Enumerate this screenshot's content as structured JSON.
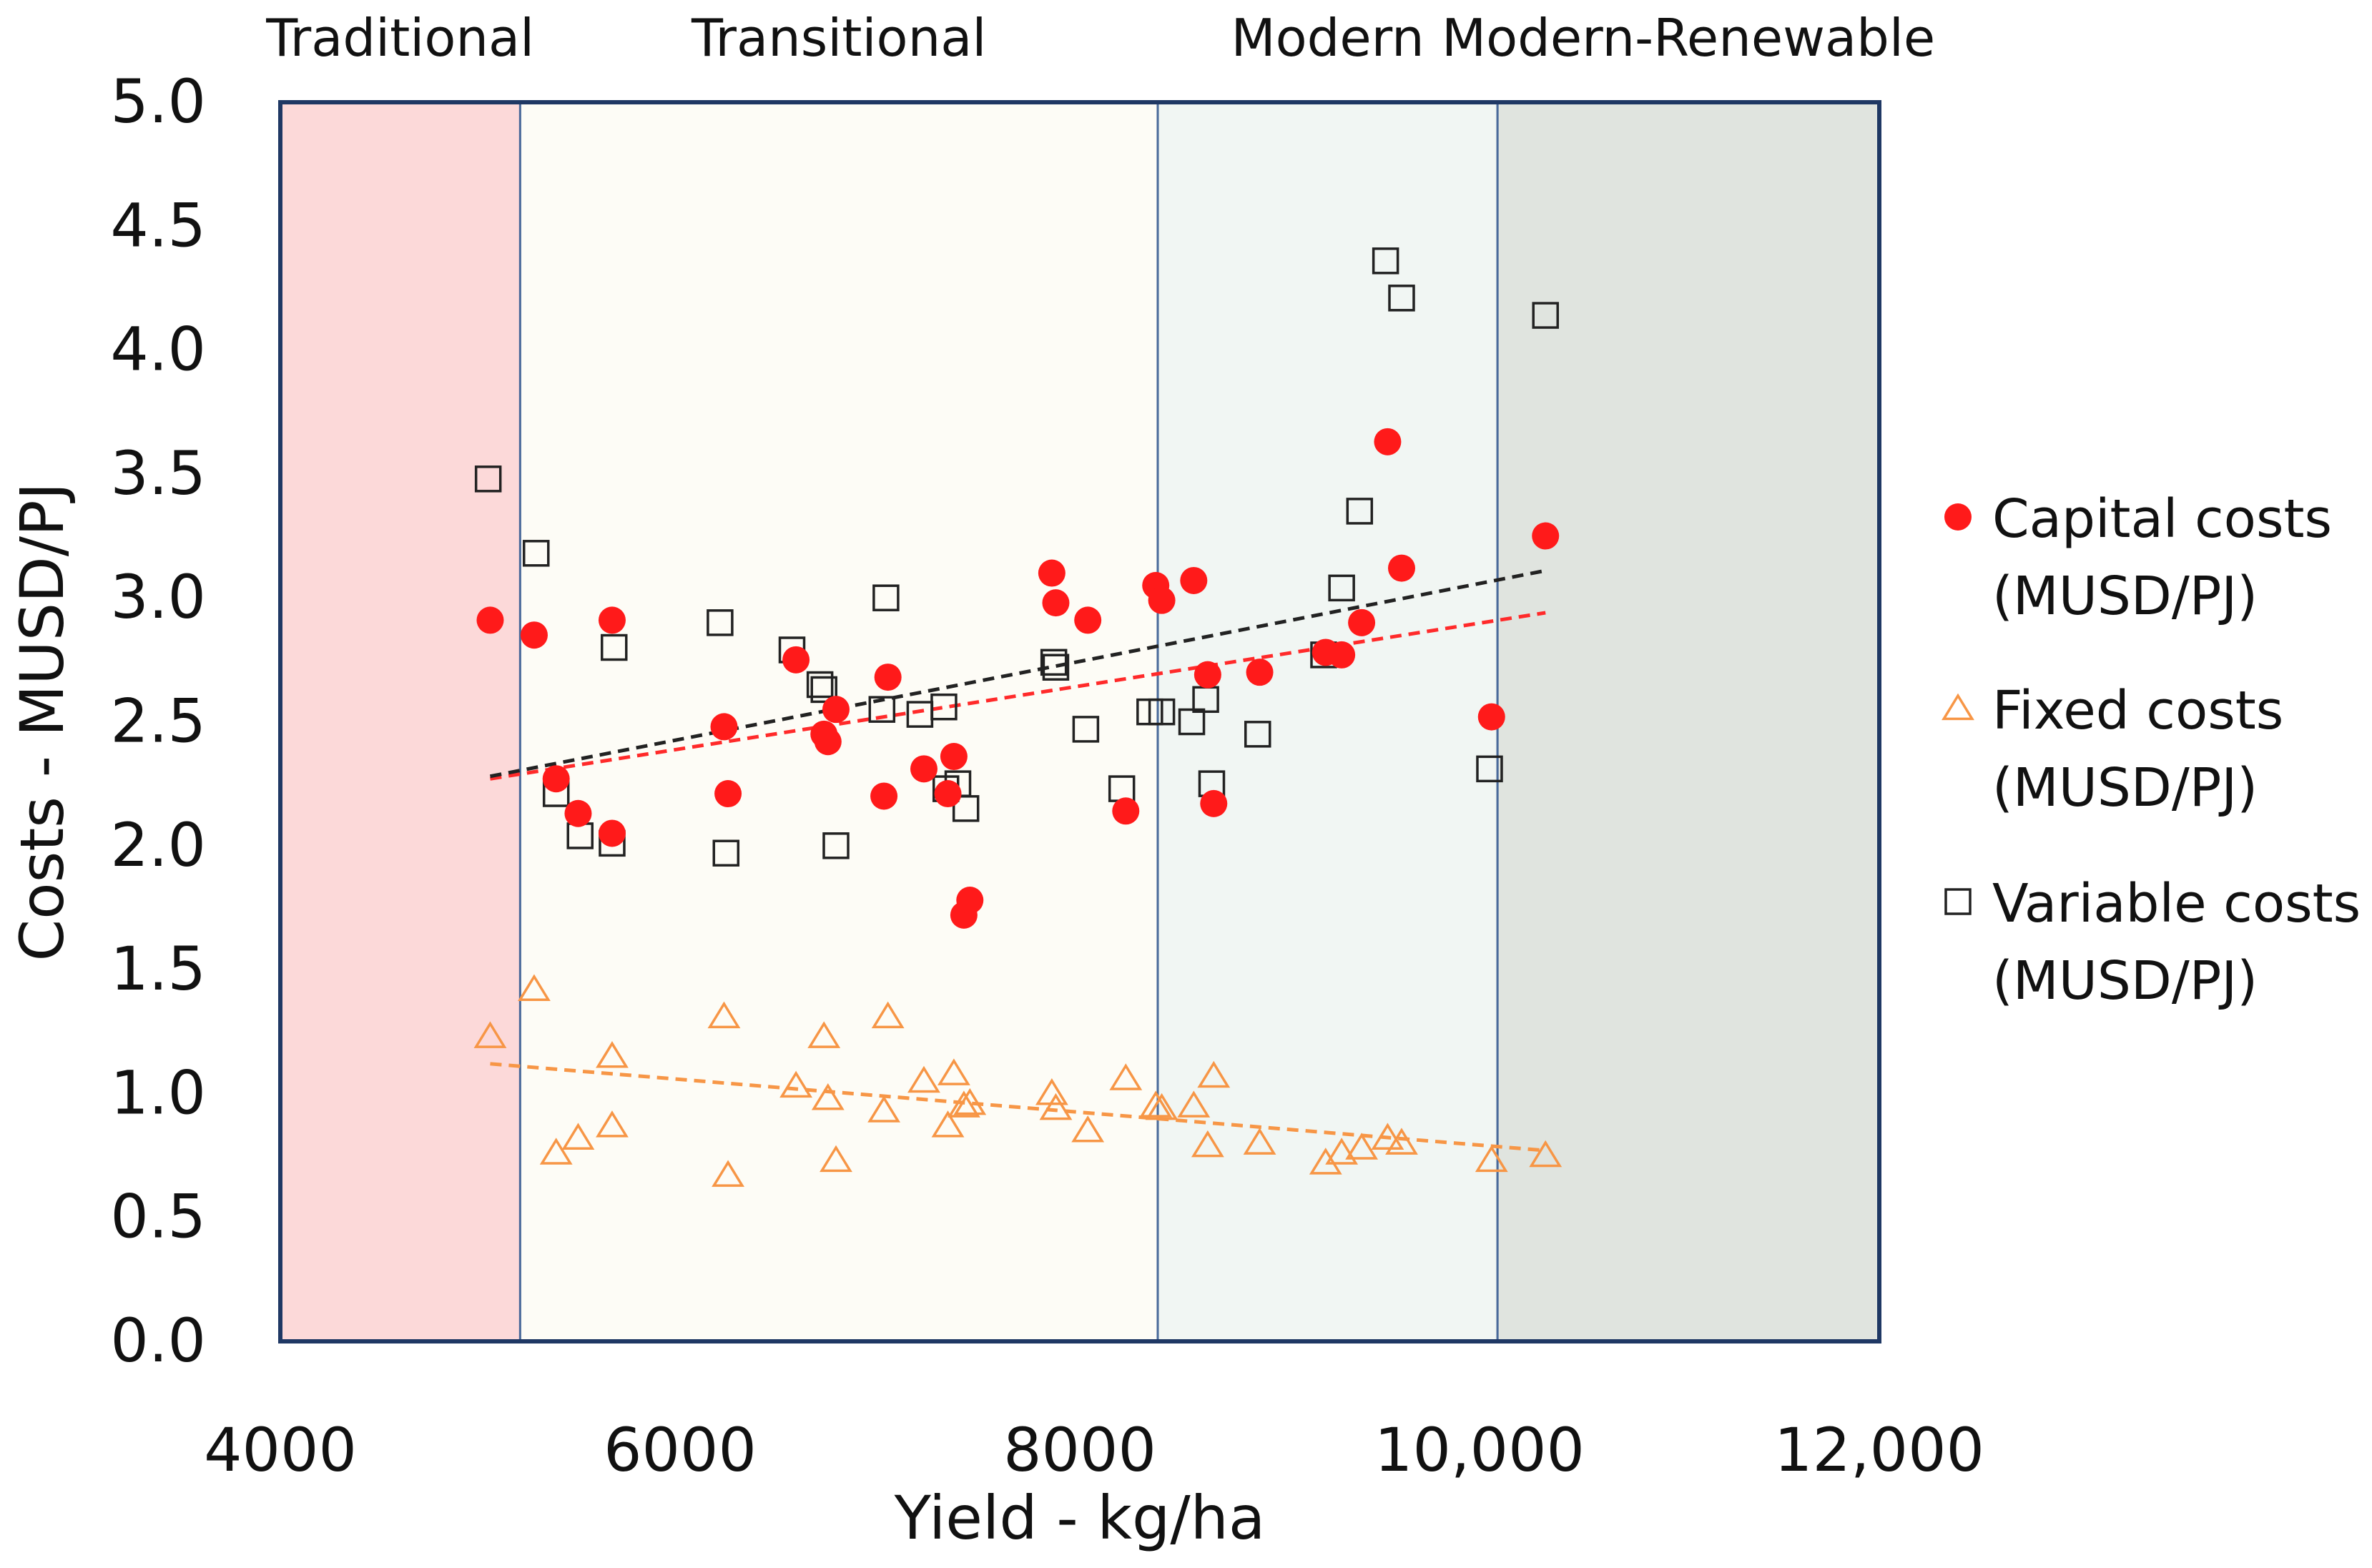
{
  "chart_data": {
    "type": "scatter",
    "title": "",
    "xlabel": "Yield - kg/ha",
    "ylabel": "Costs - MUSD/PJ",
    "xlim": [
      4000,
      12000
    ],
    "ylim": [
      0.0,
      5.0
    ],
    "x_ticks": [
      4000,
      6000,
      8000,
      10000,
      12000
    ],
    "x_tick_labels": [
      "4000",
      "6000",
      "8000",
      "10,000",
      "12,000"
    ],
    "y_ticks": [
      0.0,
      0.5,
      1.0,
      1.5,
      2.0,
      2.5,
      3.0,
      3.5,
      4.0,
      4.5,
      5.0
    ],
    "y_tick_labels": [
      "0.0",
      "0.5",
      "1.0",
      "1.5",
      "2.0",
      "2.5",
      "3.0",
      "3.5",
      "4.0",
      "4.5",
      "5.0"
    ],
    "grid": false,
    "legend_position": "right",
    "zones": [
      {
        "label": "Traditional",
        "x0": 4000,
        "x1": 5200,
        "color": "#fcd9d9"
      },
      {
        "label": "Transitional",
        "x0": 5200,
        "x1": 8390,
        "color": "#fdfcf6"
      },
      {
        "label": "Modern",
        "x0": 8390,
        "x1": 10090,
        "color": "#f1f6f3"
      },
      {
        "label": "Modern-Renewable",
        "x0": 10090,
        "x1": 12000,
        "color": "#e0e4df"
      }
    ],
    "series": [
      {
        "name": "Capital costs",
        "unit": "(MUSD/PJ)",
        "marker": "filled-circle",
        "color": "#ff1a1a",
        "points": [
          [
            5050,
            2.91
          ],
          [
            5270,
            2.85
          ],
          [
            5380,
            2.27
          ],
          [
            5490,
            2.13
          ],
          [
            5660,
            2.91
          ],
          [
            5660,
            2.05
          ],
          [
            6220,
            2.48
          ],
          [
            6240,
            2.21
          ],
          [
            6580,
            2.75
          ],
          [
            6720,
            2.45
          ],
          [
            6740,
            2.42
          ],
          [
            6780,
            2.55
          ],
          [
            7020,
            2.2
          ],
          [
            7040,
            2.68
          ],
          [
            7220,
            2.31
          ],
          [
            7340,
            2.21
          ],
          [
            7370,
            2.36
          ],
          [
            7420,
            1.72
          ],
          [
            7450,
            1.78
          ],
          [
            7860,
            3.1
          ],
          [
            7880,
            2.98
          ],
          [
            8040,
            2.91
          ],
          [
            8230,
            2.14
          ],
          [
            8380,
            3.05
          ],
          [
            8410,
            2.99
          ],
          [
            8570,
            3.07
          ],
          [
            8640,
            2.69
          ],
          [
            8670,
            2.17
          ],
          [
            8900,
            2.7
          ],
          [
            9230,
            2.78
          ],
          [
            9310,
            2.77
          ],
          [
            9410,
            2.9
          ],
          [
            9540,
            3.63
          ],
          [
            9610,
            3.12
          ],
          [
            10060,
            2.52
          ],
          [
            10330,
            3.25
          ]
        ]
      },
      {
        "name": "Fixed costs",
        "unit": "(MUSD/PJ)",
        "marker": "open-triangle",
        "color": "#f79646",
        "points": [
          [
            5050,
            1.23
          ],
          [
            5270,
            1.42
          ],
          [
            5380,
            0.76
          ],
          [
            5490,
            0.82
          ],
          [
            5660,
            1.15
          ],
          [
            5660,
            0.87
          ],
          [
            6220,
            1.31
          ],
          [
            6240,
            0.67
          ],
          [
            6580,
            1.03
          ],
          [
            6720,
            1.23
          ],
          [
            6740,
            0.98
          ],
          [
            6780,
            0.73
          ],
          [
            7020,
            0.93
          ],
          [
            7040,
            1.31
          ],
          [
            7220,
            1.05
          ],
          [
            7340,
            0.87
          ],
          [
            7370,
            1.08
          ],
          [
            7420,
            0.95
          ],
          [
            7450,
            0.96
          ],
          [
            7860,
            1.0
          ],
          [
            7880,
            0.94
          ],
          [
            8040,
            0.85
          ],
          [
            8230,
            1.06
          ],
          [
            8380,
            0.95
          ],
          [
            8410,
            0.94
          ],
          [
            8570,
            0.95
          ],
          [
            8640,
            0.79
          ],
          [
            8670,
            1.07
          ],
          [
            8900,
            0.8
          ],
          [
            9230,
            0.72
          ],
          [
            9310,
            0.76
          ],
          [
            9410,
            0.78
          ],
          [
            9540,
            0.82
          ],
          [
            9610,
            0.8
          ],
          [
            10060,
            0.73
          ],
          [
            10330,
            0.75
          ]
        ]
      },
      {
        "name": "Variable costs",
        "unit": "(MUSD/PJ)",
        "marker": "open-square",
        "color": "#222222",
        "points": [
          [
            5040,
            3.48
          ],
          [
            5280,
            3.18
          ],
          [
            5380,
            2.21
          ],
          [
            5500,
            2.04
          ],
          [
            5670,
            2.8
          ],
          [
            5660,
            2.01
          ],
          [
            6200,
            2.9
          ],
          [
            6230,
            1.97
          ],
          [
            6560,
            2.79
          ],
          [
            6700,
            2.65
          ],
          [
            6720,
            2.63
          ],
          [
            6780,
            2.0
          ],
          [
            7010,
            2.55
          ],
          [
            7030,
            3.0
          ],
          [
            7200,
            2.53
          ],
          [
            7320,
            2.56
          ],
          [
            7330,
            2.23
          ],
          [
            7390,
            2.25
          ],
          [
            7430,
            2.15
          ],
          [
            7870,
            2.74
          ],
          [
            7880,
            2.72
          ],
          [
            8030,
            2.47
          ],
          [
            8210,
            2.23
          ],
          [
            8350,
            2.54
          ],
          [
            8410,
            2.54
          ],
          [
            8560,
            2.5
          ],
          [
            8630,
            2.59
          ],
          [
            8660,
            2.25
          ],
          [
            8890,
            2.45
          ],
          [
            9220,
            2.77
          ],
          [
            9310,
            3.04
          ],
          [
            9400,
            3.35
          ],
          [
            9530,
            4.36
          ],
          [
            9610,
            4.21
          ],
          [
            10050,
            2.31
          ],
          [
            10330,
            4.14
          ]
        ]
      }
    ],
    "trendlines": [
      {
        "series": "Capital costs",
        "style": "dashed",
        "color": "#ff2a2a",
        "x": [
          5050,
          10330
        ],
        "y": [
          2.27,
          2.94
        ]
      },
      {
        "series": "Fixed costs",
        "style": "dashed",
        "color": "#f79646",
        "x": [
          5050,
          10330
        ],
        "y": [
          1.12,
          0.77
        ]
      },
      {
        "series": "Variable costs",
        "style": "dashed",
        "color": "#222222",
        "x": [
          5050,
          10330
        ],
        "y": [
          2.28,
          3.11
        ]
      }
    ]
  }
}
